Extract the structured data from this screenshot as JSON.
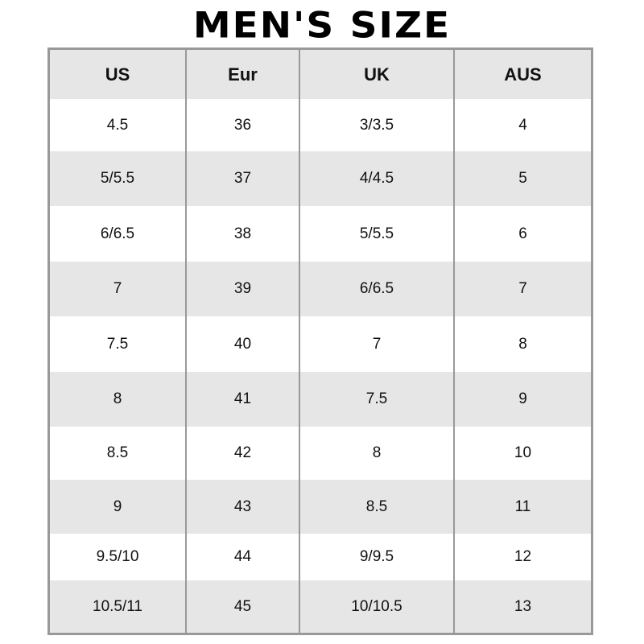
{
  "title": "MEN'S SIZE",
  "headers": [
    "US",
    "Eur",
    "UK",
    "AUS"
  ],
  "rows": [
    [
      "4.5",
      "36",
      "3/3.5",
      "4"
    ],
    [
      "5/5.5",
      "37",
      "4/4.5",
      "5"
    ],
    [
      "6/6.5",
      "38",
      "5/5.5",
      "6"
    ],
    [
      "7",
      "39",
      "6/6.5",
      "7"
    ],
    [
      "7.5",
      "40",
      "7",
      "8"
    ],
    [
      "8",
      "41",
      "7.5",
      "9"
    ],
    [
      "8.5",
      "42",
      "8",
      "10"
    ],
    [
      "9",
      "43",
      "8.5",
      "11"
    ],
    [
      "9.5/10",
      "44",
      "9/9.5",
      "12"
    ],
    [
      "10.5/11",
      "45",
      "10/10.5",
      "13"
    ]
  ]
}
